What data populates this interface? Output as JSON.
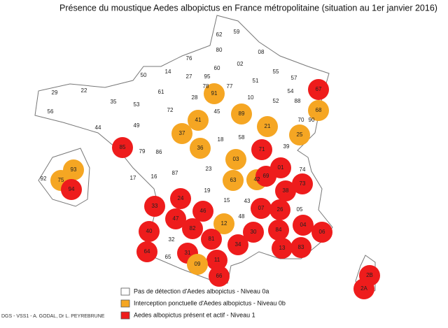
{
  "title": "Présence du moustique Aedes albopictus en France métropolitaine (situation au 1er janvier 2016)",
  "credit": "DGS - VSS1 - A. GODAL, Dr L. PEYREBRUNE",
  "legend": [
    {
      "label": "Pas de détection d'Aedes albopictus - Niveau 0a",
      "color": "#ffffff"
    },
    {
      "label": "Interception ponctuelle d'Aedes albopictus - Niveau 0b",
      "color": "#f5a623"
    },
    {
      "label": "Aedes albopictus présent et actif - Niveau 1",
      "color": "#ee1c1c"
    }
  ],
  "departments": [
    {
      "code": "62",
      "level": 0
    },
    {
      "code": "59",
      "level": 0
    },
    {
      "code": "80",
      "level": 0
    },
    {
      "code": "02",
      "level": 0
    },
    {
      "code": "08",
      "level": 0
    },
    {
      "code": "76",
      "level": 0
    },
    {
      "code": "60",
      "level": 0
    },
    {
      "code": "50",
      "level": 0
    },
    {
      "code": "14",
      "level": 0
    },
    {
      "code": "27",
      "level": 0
    },
    {
      "code": "95",
      "level": 0
    },
    {
      "code": "78",
      "level": 0
    },
    {
      "code": "91",
      "level": 1
    },
    {
      "code": "77",
      "level": 0
    },
    {
      "code": "51",
      "level": 0
    },
    {
      "code": "55",
      "level": 0
    },
    {
      "code": "57",
      "level": 0
    },
    {
      "code": "67",
      "level": 2
    },
    {
      "code": "54",
      "level": 0
    },
    {
      "code": "88",
      "level": 0
    },
    {
      "code": "68",
      "level": 1
    },
    {
      "code": "70",
      "level": 0
    },
    {
      "code": "90",
      "level": 0
    },
    {
      "code": "29",
      "level": 0
    },
    {
      "code": "22",
      "level": 0
    },
    {
      "code": "35",
      "level": 0
    },
    {
      "code": "61",
      "level": 0
    },
    {
      "code": "28",
      "level": 0
    },
    {
      "code": "10",
      "level": 0
    },
    {
      "code": "52",
      "level": 0
    },
    {
      "code": "56",
      "level": 0
    },
    {
      "code": "53",
      "level": 0
    },
    {
      "code": "72",
      "level": 0
    },
    {
      "code": "45",
      "level": 0
    },
    {
      "code": "89",
      "level": 1
    },
    {
      "code": "21",
      "level": 1
    },
    {
      "code": "44",
      "level": 0
    },
    {
      "code": "49",
      "level": 0
    },
    {
      "code": "37",
      "level": 1
    },
    {
      "code": "41",
      "level": 1
    },
    {
      "code": "25",
      "level": 1
    },
    {
      "code": "39",
      "level": 0
    },
    {
      "code": "85",
      "level": 2
    },
    {
      "code": "79",
      "level": 0
    },
    {
      "code": "86",
      "level": 0
    },
    {
      "code": "36",
      "level": 1
    },
    {
      "code": "18",
      "level": 0
    },
    {
      "code": "58",
      "level": 0
    },
    {
      "code": "71",
      "level": 2
    },
    {
      "code": "01",
      "level": 2
    },
    {
      "code": "74",
      "level": 0
    },
    {
      "code": "17",
      "level": 0
    },
    {
      "code": "16",
      "level": 0
    },
    {
      "code": "87",
      "level": 0
    },
    {
      "code": "23",
      "level": 0
    },
    {
      "code": "03",
      "level": 1
    },
    {
      "code": "63",
      "level": 1
    },
    {
      "code": "42",
      "level": 1
    },
    {
      "code": "69",
      "level": 2
    },
    {
      "code": "38",
      "level": 2
    },
    {
      "code": "73",
      "level": 2
    },
    {
      "code": "19",
      "level": 0
    },
    {
      "code": "15",
      "level": 0
    },
    {
      "code": "43",
      "level": 0
    },
    {
      "code": "24",
      "level": 2
    },
    {
      "code": "33",
      "level": 2
    },
    {
      "code": "47",
      "level": 2
    },
    {
      "code": "46",
      "level": 2
    },
    {
      "code": "12",
      "level": 1
    },
    {
      "code": "48",
      "level": 0
    },
    {
      "code": "07",
      "level": 2
    },
    {
      "code": "26",
      "level": 2
    },
    {
      "code": "05",
      "level": 0
    },
    {
      "code": "04",
      "level": 2
    },
    {
      "code": "06",
      "level": 2
    },
    {
      "code": "40",
      "level": 2
    },
    {
      "code": "82",
      "level": 2
    },
    {
      "code": "81",
      "level": 2
    },
    {
      "code": "30",
      "level": 2
    },
    {
      "code": "84",
      "level": 2
    },
    {
      "code": "13",
      "level": 2
    },
    {
      "code": "83",
      "level": 2
    },
    {
      "code": "34",
      "level": 2
    },
    {
      "code": "32",
      "level": 0
    },
    {
      "code": "31",
      "level": 2
    },
    {
      "code": "11",
      "level": 2
    },
    {
      "code": "64",
      "level": 2
    },
    {
      "code": "65",
      "level": 0
    },
    {
      "code": "09",
      "level": 1
    },
    {
      "code": "66",
      "level": 2
    },
    {
      "code": "2B",
      "level": 2
    },
    {
      "code": "2A",
      "level": 2
    },
    {
      "code": "93",
      "level": 1
    },
    {
      "code": "92",
      "level": 0
    },
    {
      "code": "75",
      "level": 1
    },
    {
      "code": "94",
      "level": 2
    }
  ]
}
